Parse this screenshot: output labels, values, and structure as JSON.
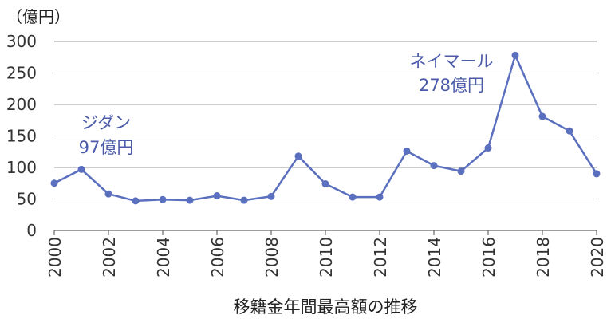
{
  "chart_data": {
    "type": "line",
    "title": "",
    "ylabel": "（億円）",
    "xlabel": "移籍金年間最高額の推移",
    "ylim": [
      0,
      300
    ],
    "yticks": [
      0,
      50,
      100,
      150,
      200,
      250,
      300
    ],
    "xlim": [
      2000,
      2020
    ],
    "xticks": [
      2000,
      2002,
      2004,
      2006,
      2008,
      2010,
      2012,
      2014,
      2016,
      2018,
      2020
    ],
    "grid": true,
    "colors": {
      "series": "#5b6fbf",
      "annotation": "#4a5aa8"
    },
    "series": [
      {
        "x": [
          2000,
          2001,
          2002,
          2003,
          2004,
          2005,
          2006,
          2007,
          2008,
          2009,
          2010,
          2011,
          2012,
          2013,
          2014,
          2015,
          2016,
          2017,
          2018,
          2019,
          2020
        ],
        "values": [
          75,
          97,
          58,
          47,
          49,
          48,
          55,
          48,
          54,
          118,
          74,
          53,
          53,
          126,
          103,
          94,
          131,
          278,
          181,
          158,
          90
        ]
      }
    ],
    "annotations": [
      {
        "name": "ジダン",
        "value": "97億円",
        "x": 2001,
        "y": 97
      },
      {
        "name": "ネイマール",
        "value": "278億円",
        "x": 2017,
        "y": 278
      }
    ]
  }
}
